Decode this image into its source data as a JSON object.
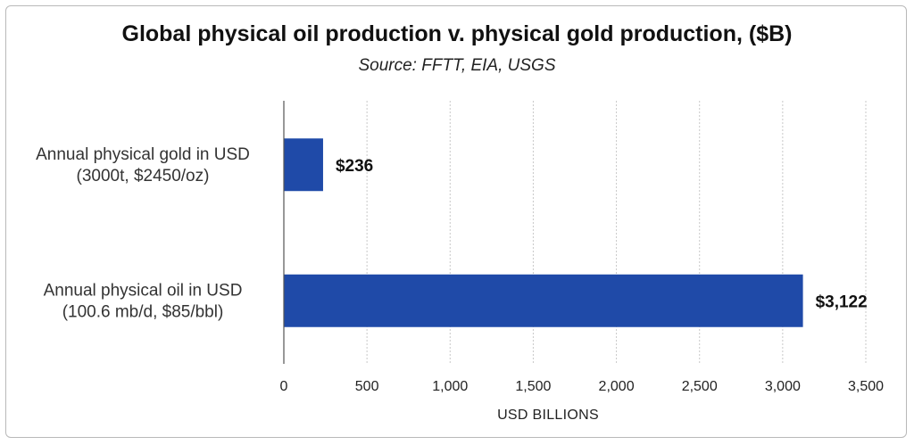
{
  "chart_data": {
    "type": "bar",
    "orientation": "horizontal",
    "title": "Global physical oil production v. physical gold production, ($B)",
    "subtitle": "Source:  FFTT, EIA, USGS",
    "categories": [
      [
        "Annual physical gold in USD",
        "(3000t, $2450/oz)"
      ],
      [
        "Annual physical oil in USD",
        "(100.6 mb/d, $85/bbl)"
      ]
    ],
    "values": [
      236,
      3122
    ],
    "data_labels": [
      "$236",
      "$3,122"
    ],
    "xlabel": "USD BILLIONS",
    "ylabel": "",
    "xlim": [
      0,
      3500
    ],
    "xticks": [
      0,
      500,
      1000,
      1500,
      2000,
      2500,
      3000,
      3500
    ],
    "xtick_labels": [
      "0",
      "500",
      "1,000",
      "1,500",
      "2,000",
      "2,500",
      "3,000",
      "3,500"
    ],
    "grid": true,
    "bar_color": "#1f4aa8"
  }
}
